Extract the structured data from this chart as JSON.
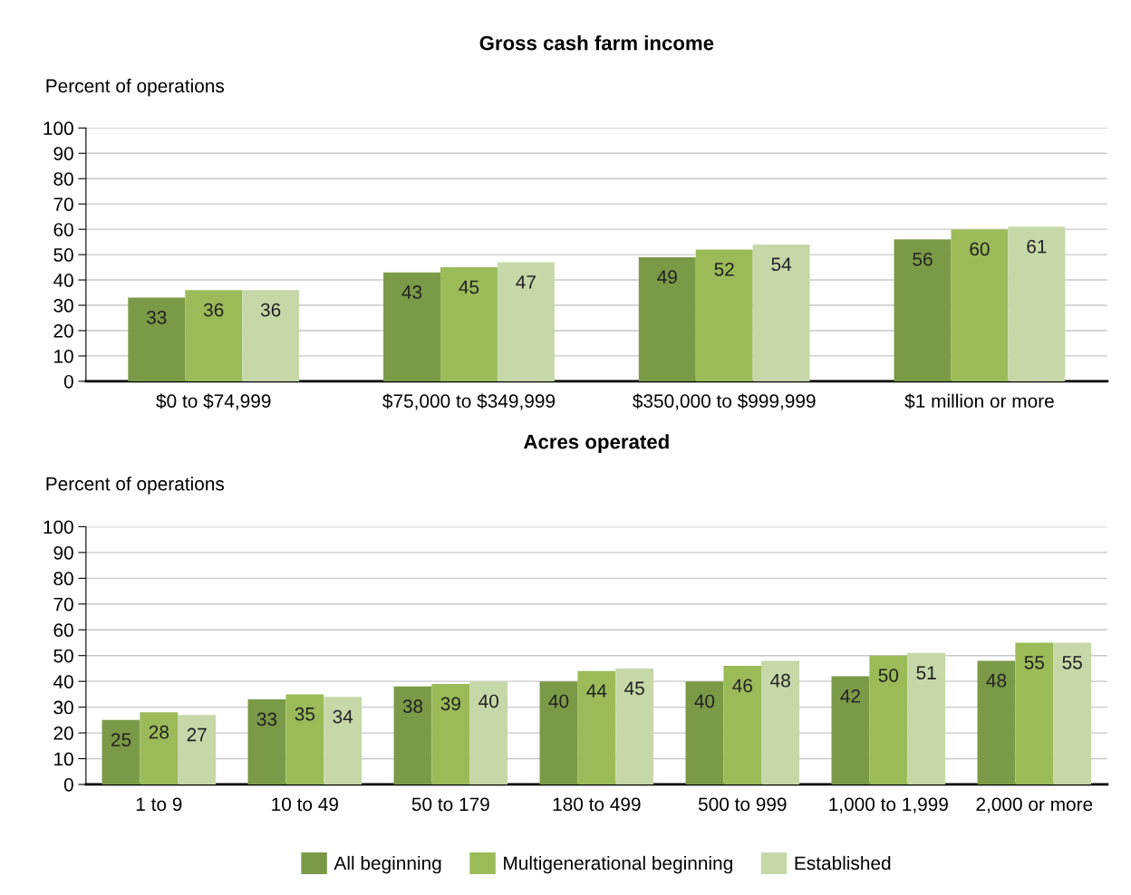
{
  "chart_data": [
    {
      "type": "bar",
      "title": "Gross cash farm income",
      "ylabel": "Percent of operations",
      "categories": [
        "$0 to $74,999",
        "$75,000 to $349,999",
        "$350,000 to $999,999",
        "$1 million or more"
      ],
      "series": [
        {
          "color": "#7a9a47",
          "values": [
            33,
            43,
            49,
            56
          ]
        },
        {
          "color": "#9bbb59",
          "values": [
            36,
            45,
            52,
            60
          ]
        },
        {
          "color": "#c6d8a8",
          "values": [
            36,
            47,
            54,
            61
          ]
        }
      ],
      "ylim": [
        0,
        100
      ],
      "yticks": [
        0,
        10,
        20,
        30,
        40,
        50,
        60,
        70,
        80,
        90,
        100
      ],
      "grid": "y",
      "data_labels": true
    },
    {
      "type": "bar",
      "title": "Acres operated",
      "ylabel": "Percent of operations",
      "categories": [
        "1 to 9",
        "10 to 49",
        "50 to 179",
        "180 to 499",
        "500 to 999",
        "1,000 to 1,999",
        "2,000 or more"
      ],
      "series": [
        {
          "name": "All beginning",
          "color": "#7a9a47",
          "values": [
            25,
            33,
            38,
            40,
            40,
            42,
            48
          ]
        },
        {
          "name": "Multigenerational beginning",
          "color": "#9bbb59",
          "values": [
            28,
            35,
            39,
            44,
            46,
            50,
            55
          ]
        },
        {
          "name": "Established",
          "color": "#c6d8a8",
          "values": [
            27,
            34,
            40,
            45,
            48,
            51,
            55
          ]
        }
      ],
      "ylim": [
        0,
        100
      ],
      "yticks": [
        0,
        10,
        20,
        30,
        40,
        50,
        60,
        70,
        80,
        90,
        100
      ],
      "grid": "y",
      "data_labels": true,
      "legend": "bottom"
    }
  ]
}
